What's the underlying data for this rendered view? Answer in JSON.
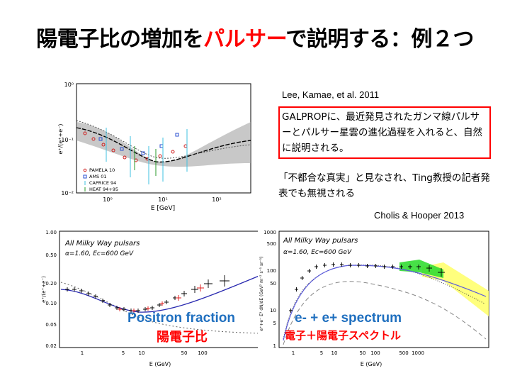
{
  "slide": {
    "title_part1": "陽電子比の増加を",
    "title_accent": "パルサー",
    "title_part2": "で説明する：例２つ"
  },
  "references": {
    "lee": "Lee, Kamae, et al. 2011",
    "cholis": "Cholis & Hooper 2013"
  },
  "callout": {
    "text": "GALPROPに、最近発見されたガンマ線パルサーとパルサー星雲の進化過程を入れると、自然に説明される。"
  },
  "note": {
    "text": "「不都合な真実」と見なされ、Ting教授の記者発表でも無視される"
  },
  "figures": {
    "top": {
      "ylabel": "e⁺/(e⁺+e⁻)",
      "xlabel": "E [GeV]",
      "y_ticks": [
        "10⁰",
        "10⁻¹",
        "10⁻²"
      ],
      "x_ticks": [
        "10⁰",
        "10¹",
        "10²"
      ],
      "legend": [
        "PAMELA 10",
        "AMS 01",
        "CAPRICE 94",
        "HEAT 94+95"
      ]
    },
    "bottom_left": {
      "panel_label": "All Milky Way pulsars",
      "params": "α=1.60, Ec=600 GeV",
      "ylabel": "e⁺/(e⁺+e⁻)",
      "xlabel": "E (GeV)",
      "y_ticks": [
        "1.00",
        "0.50",
        "0.20",
        "0.10",
        "0.05",
        "0.02"
      ],
      "x_ticks": [
        "1",
        "5",
        "10",
        "50",
        "100"
      ],
      "overlay_en": "Positron fraction",
      "overlay_ja": "陽電子比"
    },
    "bottom_right": {
      "panel_label": "All Milky Way pulsars",
      "params": "α=1.60, Ec=600 GeV",
      "ylabel": "e⁺+e⁻ E³ dN/dE (GeV² m⁻² s⁻¹ sr⁻¹)",
      "xlabel": "E (GeV)",
      "y_ticks": [
        "1000",
        "500",
        "100",
        "50",
        "10",
        "5",
        "1"
      ],
      "x_ticks": [
        "1",
        "5",
        "10",
        "50",
        "100",
        "500",
        "1000"
      ],
      "overlay_en": "e- + e+ spectrum",
      "overlay_ja": "電子＋陽電子スペクトル"
    }
  },
  "colors": {
    "accent": "#ff0000",
    "overlay_blue": "#1f6fbf",
    "band_gray": "#9a9a9a",
    "band_green": "#33dd33",
    "band_yellow": "#ffff66"
  }
}
